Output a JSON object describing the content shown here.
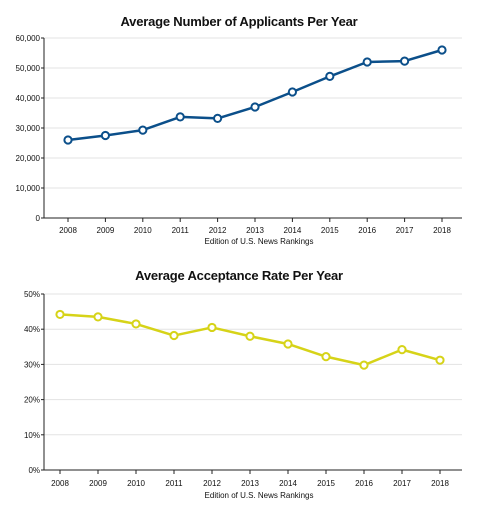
{
  "chart_data": [
    {
      "type": "line",
      "title": "Average Number of Applicants Per Year",
      "xlabel": "Edition of U.S. News Rankings",
      "ylabel": "",
      "categories": [
        "2008",
        "2009",
        "2010",
        "2011",
        "2012",
        "2013",
        "2014",
        "2015",
        "2016",
        "2017",
        "2018"
      ],
      "series": [
        {
          "values": [
            26000,
            27500,
            29300,
            33700,
            33200,
            37000,
            42000,
            47200,
            52000,
            52300,
            56000
          ],
          "color": "#0b4f8a"
        }
      ],
      "ylim": [
        0,
        60000
      ],
      "yticks": [
        0,
        10000,
        20000,
        30000,
        40000,
        50000,
        60000
      ],
      "ytick_labels": [
        "0",
        "10,000",
        "20,000",
        "30,000",
        "40,000",
        "50,000",
        "60,000"
      ],
      "grid": true,
      "legend": "none"
    },
    {
      "type": "line",
      "title": "Average Acceptance Rate Per Year",
      "xlabel": "Edition of U.S. News Rankings",
      "ylabel": "",
      "categories": [
        "2008",
        "2009",
        "2010",
        "2011",
        "2012",
        "2013",
        "2014",
        "2015",
        "2016",
        "2017",
        "2018"
      ],
      "series": [
        {
          "values": [
            44.2,
            43.5,
            41.5,
            38.2,
            40.5,
            38.0,
            35.8,
            32.2,
            29.8,
            34.2,
            31.2
          ],
          "color": "#d6d318"
        }
      ],
      "ylim": [
        0,
        50
      ],
      "yticks": [
        0,
        10,
        20,
        30,
        40,
        50
      ],
      "ytick_labels": [
        "0%",
        "10%",
        "20%",
        "30%",
        "40%",
        "50%"
      ],
      "grid": true,
      "legend": "none"
    }
  ]
}
